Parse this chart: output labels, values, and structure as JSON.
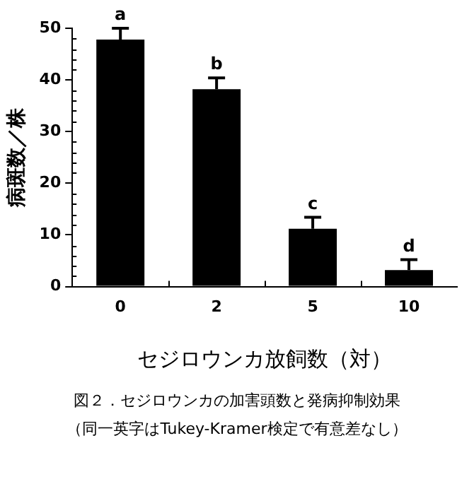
{
  "chart_data": {
    "type": "bar",
    "categories": [
      "0",
      "2",
      "5",
      "10"
    ],
    "values": [
      47.8,
      38.2,
      11.2,
      3.2
    ],
    "color": "#000000",
    "errors": [
      [
        47.8,
        50
      ],
      [
        38.2,
        40.4
      ],
      [
        11.2,
        13.4
      ],
      [
        3.2,
        5.2
      ]
    ],
    "ylim": [
      0,
      50
    ],
    "yticks": [
      0,
      10,
      20,
      30,
      40,
      50
    ],
    "grid": false,
    "legend": false,
    "xlabel": "セジロウンカ放飼数（対）",
    "ylabel": "病斑数／株",
    "annotations": [
      {
        "text": "a",
        "x": "0",
        "y": 50
      },
      {
        "text": "b",
        "x": "2",
        "y": 40.4
      },
      {
        "text": "c",
        "x": "5",
        "y": 13.4
      },
      {
        "text": "d",
        "x": "10",
        "y": 5.2
      },
      "図２．セジロウンカの加害頭数と発病抑制効果",
      "（同一英字はTukey-Kramer検定で有意差なし）"
    ]
  }
}
